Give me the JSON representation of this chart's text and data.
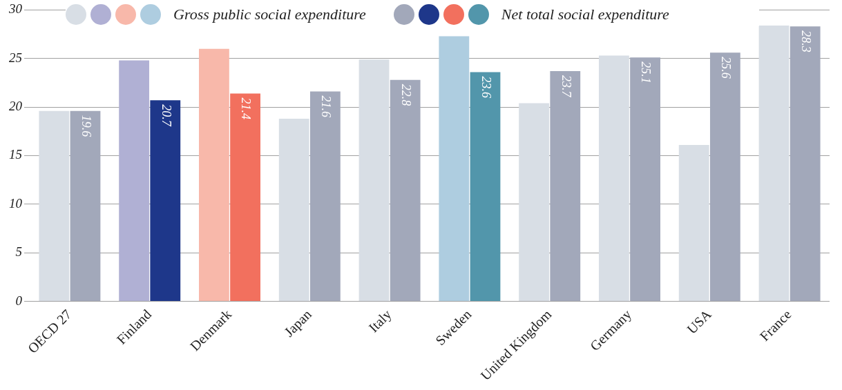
{
  "chart_data": {
    "type": "bar",
    "categories": [
      "OECD 27",
      "Finland",
      "Denmark",
      "Japan",
      "Italy",
      "Sweden",
      "United Kingdom",
      "Germany",
      "USA",
      "France"
    ],
    "series": [
      {
        "name": "Gross public social expenditure",
        "colors": [
          "#d8dee5",
          "#b0b0d4",
          "#f8b8aa",
          "#d8dee5",
          "#d8dee5",
          "#aecde0",
          "#d8dee5",
          "#d8dee5",
          "#d8dee5",
          "#d8dee5"
        ],
        "values": [
          19.6,
          24.8,
          26.0,
          18.8,
          24.9,
          27.3,
          20.4,
          25.3,
          16.1,
          28.4
        ]
      },
      {
        "name": "Net total social expenditure",
        "colors": [
          "#a2a8ba",
          "#1e378a",
          "#f2705e",
          "#a2a8ba",
          "#a2a8ba",
          "#5296ab",
          "#a2a8ba",
          "#a2a8ba",
          "#a2a8ba",
          "#a2a8ba"
        ],
        "values": [
          19.6,
          20.7,
          21.4,
          21.6,
          22.8,
          23.6,
          23.7,
          25.1,
          25.6,
          28.3
        ],
        "value_labels": [
          "19.6",
          "20.7",
          "21.4",
          "21.6",
          "22.8",
          "23.6",
          "23.7",
          "25.1",
          "25.6",
          "28.3"
        ]
      }
    ],
    "ylim": [
      0,
      30
    ],
    "yticks": [
      0,
      5,
      10,
      15,
      20,
      25,
      30
    ],
    "grid": "y",
    "legend": "top"
  }
}
